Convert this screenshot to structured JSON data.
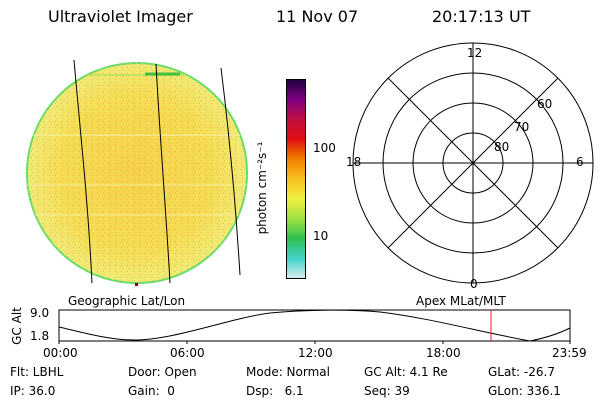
{
  "header": {
    "instrument": "Ultraviolet Imager",
    "date": "11 Nov 07",
    "time": "20:17:13 UT"
  },
  "colors": {
    "image_fill": "#f2e86a",
    "image_rim": "#6bdc6a",
    "grid_line": "#000000",
    "orbit_marker": "#e02020"
  },
  "colorbar": {
    "ticks": [
      "100",
      "10"
    ],
    "unit_label": "photon cm⁻²s⁻¹",
    "stops": [
      "#d8ecec",
      "#40d0c8",
      "#30c050",
      "#a0e040",
      "#f0f040",
      "#f8c020",
      "#f08000",
      "#e01010",
      "#c01040",
      "#800080",
      "#200040"
    ]
  },
  "polar": {
    "labels": {
      "top": "12",
      "bottom": "0",
      "left": "18",
      "right": "6"
    },
    "lat_labels": [
      "60",
      "70",
      "80"
    ]
  },
  "map_labels": {
    "left": "Geographic Lat/Lon",
    "right": "Apex MLat/MLT"
  },
  "altitude_plot": {
    "axis_label": "GC Alt",
    "y_ticks": [
      "9.0",
      "1.8"
    ],
    "x_ticks": [
      "00:00",
      "06:00",
      "12:00",
      "18:00",
      "23:59"
    ],
    "marker_time": "20:17"
  },
  "footer": {
    "filter": "Flt: LBHL",
    "ip": "IP: 36.0",
    "door": "Door: Open",
    "gain": "Gain:  0",
    "mode": "Mode: Normal",
    "dsp": "Dsp:   6.1",
    "gc_alt": "GC Alt: 4.1 Re",
    "seq": "Seq: 39",
    "glat": "GLat: -26.7",
    "glon": "GLon: 336.1"
  }
}
